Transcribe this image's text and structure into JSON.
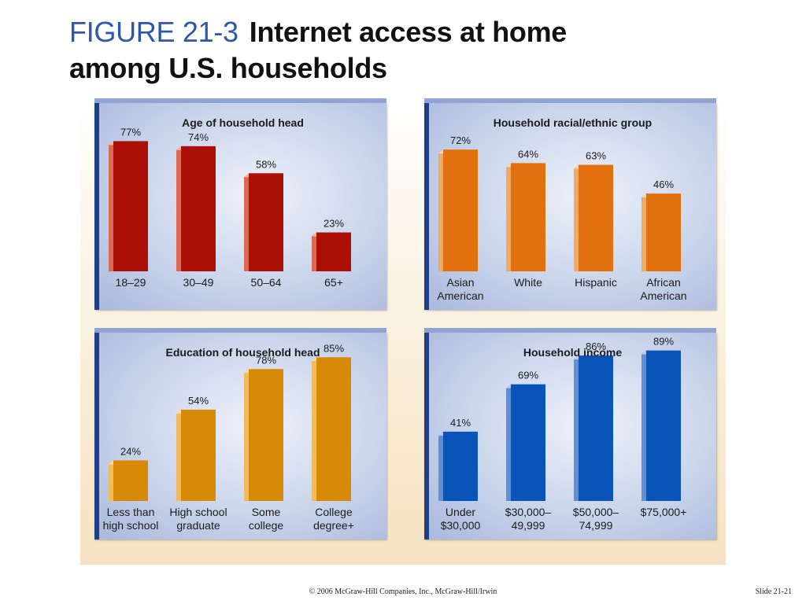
{
  "slide": {
    "figure_label": "FIGURE 21-3",
    "title_line1": "Internet access at home",
    "title_line2": "among U.S. households",
    "footer": "© 2006 McGraw-Hill Companies, Inc., McGraw-Hill/Irwin",
    "slide_number": "Slide 21-21"
  },
  "chart_data": [
    {
      "type": "bar",
      "title": "Age of household head",
      "categories": [
        [
          "18–29"
        ],
        [
          "30–49"
        ],
        [
          "50–64"
        ],
        [
          "65+"
        ]
      ],
      "values": [
        77,
        74,
        58,
        23
      ],
      "value_labels": [
        "77%",
        "74%",
        "58%",
        "23%"
      ],
      "unit": "%",
      "ylim": [
        0,
        100
      ],
      "grid": false,
      "colors": {
        "front": "#ab1006",
        "side": "#d96a55",
        "top": "#f0b7a3"
      }
    },
    {
      "type": "bar",
      "title": "Household racial/ethnic group",
      "categories": [
        [
          "Asian",
          "American"
        ],
        [
          "White"
        ],
        [
          "Hispanic"
        ],
        [
          "African",
          "American"
        ]
      ],
      "values": [
        72,
        64,
        63,
        46
      ],
      "value_labels": [
        "72%",
        "64%",
        "63%",
        "46%"
      ],
      "unit": "%",
      "ylim": [
        0,
        100
      ],
      "grid": false,
      "colors": {
        "front": "#e3700f",
        "side": "#f2aa63",
        "top": "#fad4a8"
      }
    },
    {
      "type": "bar",
      "title": "Education of household head",
      "categories": [
        [
          "Less than",
          "high school"
        ],
        [
          "High school",
          "graduate"
        ],
        [
          "Some",
          "college"
        ],
        [
          "College",
          "degree+"
        ]
      ],
      "values": [
        24,
        54,
        78,
        85
      ],
      "value_labels": [
        "24%",
        "54%",
        "78%",
        "85%"
      ],
      "unit": "%",
      "ylim": [
        0,
        100
      ],
      "grid": false,
      "colors": {
        "front": "#d78a07",
        "side": "#efbb5f",
        "top": "#f8dca6"
      }
    },
    {
      "type": "bar",
      "title": "Household income",
      "categories": [
        [
          "Under",
          "$30,000"
        ],
        [
          "$30,000–",
          "49,999"
        ],
        [
          "$50,000–",
          "74,999"
        ],
        [
          "$75,000+"
        ]
      ],
      "values": [
        41,
        69,
        86,
        89
      ],
      "value_labels": [
        "41%",
        "69%",
        "86%",
        "89%"
      ],
      "unit": "%",
      "ylim": [
        0,
        100
      ],
      "grid": false,
      "colors": {
        "front": "#0a53b8",
        "side": "#5f8fd6",
        "top": "#b5cbee"
      }
    }
  ]
}
